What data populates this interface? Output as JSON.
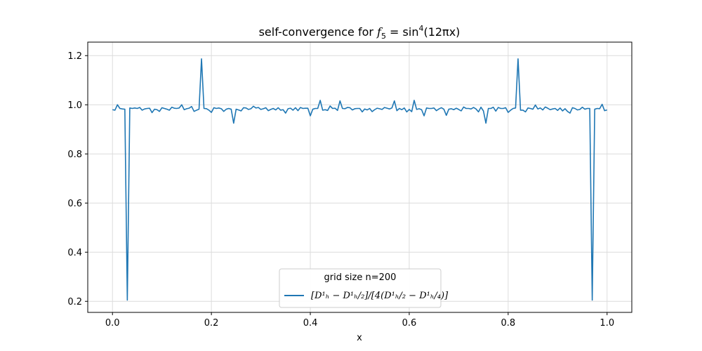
{
  "chart_data": {
    "type": "line",
    "title_prefix": "self-convergence for ",
    "title_math": "f",
    "title_sub": "5",
    "title_rest": " = sin",
    "title_sup": "4",
    "title_end": "(12πx)",
    "xlabel": "x",
    "ylabel": "",
    "xlim": [
      -0.05,
      1.05
    ],
    "ylim": [
      0.155,
      1.255
    ],
    "xticks": [
      0.0,
      0.2,
      0.4,
      0.6,
      0.8,
      1.0
    ],
    "xtick_labels": [
      "0.0",
      "0.2",
      "0.4",
      "0.6",
      "0.8",
      "1.0"
    ],
    "yticks": [
      0.2,
      0.4,
      0.6,
      0.8,
      1.0,
      1.2
    ],
    "ytick_labels": [
      "0.2",
      "0.4",
      "0.6",
      "0.8",
      "1.0",
      "1.2"
    ],
    "grid": true,
    "legend": {
      "placement": "lower center",
      "title": "grid size n=200",
      "entry": "[D¹ₕ − D¹ₕ/₂]/[4(D¹ₕ/₂ − D¹ₕ/₄)]"
    },
    "series": [
      {
        "color": "#1f77b4",
        "x": [
          0.0,
          0.005,
          0.01,
          0.015,
          0.02,
          0.025,
          0.03,
          0.035,
          0.04,
          0.045,
          0.05,
          0.055,
          0.06,
          0.065,
          0.07,
          0.075,
          0.08,
          0.085,
          0.09,
          0.095,
          0.1,
          0.105,
          0.11,
          0.115,
          0.12,
          0.125,
          0.13,
          0.135,
          0.14,
          0.145,
          0.15,
          0.155,
          0.16,
          0.165,
          0.17,
          0.175,
          0.18,
          0.185,
          0.19,
          0.195,
          0.2,
          0.205,
          0.21,
          0.215,
          0.22,
          0.225,
          0.23,
          0.235,
          0.24,
          0.245,
          0.25,
          0.255,
          0.26,
          0.265,
          0.27,
          0.275,
          0.28,
          0.285,
          0.29,
          0.295,
          0.3,
          0.305,
          0.31,
          0.315,
          0.32,
          0.325,
          0.33,
          0.335,
          0.34,
          0.345,
          0.35,
          0.355,
          0.36,
          0.365,
          0.37,
          0.375,
          0.38,
          0.385,
          0.39,
          0.395,
          0.4,
          0.405,
          0.41,
          0.415,
          0.42,
          0.425,
          0.43,
          0.435,
          0.44,
          0.445,
          0.45,
          0.455,
          0.46,
          0.465,
          0.47,
          0.475,
          0.48,
          0.485,
          0.49,
          0.495,
          0.5,
          0.505,
          0.51,
          0.515,
          0.52,
          0.525,
          0.53,
          0.535,
          0.54,
          0.545,
          0.55,
          0.555,
          0.56,
          0.565,
          0.57,
          0.575,
          0.58,
          0.585,
          0.59,
          0.595,
          0.6,
          0.605,
          0.61,
          0.615,
          0.62,
          0.625,
          0.63,
          0.635,
          0.64,
          0.645,
          0.65,
          0.655,
          0.66,
          0.665,
          0.67,
          0.675,
          0.68,
          0.685,
          0.69,
          0.695,
          0.7,
          0.705,
          0.71,
          0.715,
          0.72,
          0.725,
          0.73,
          0.735,
          0.74,
          0.745,
          0.75,
          0.755,
          0.76,
          0.765,
          0.77,
          0.775,
          0.78,
          0.785,
          0.79,
          0.795,
          0.8,
          0.805,
          0.81,
          0.815,
          0.82,
          0.825,
          0.83,
          0.835,
          0.84,
          0.845,
          0.85,
          0.855,
          0.86,
          0.865,
          0.87,
          0.875,
          0.88,
          0.885,
          0.89,
          0.895,
          0.9,
          0.905,
          0.91,
          0.915,
          0.92,
          0.925,
          0.93,
          0.935,
          0.94,
          0.945,
          0.95,
          0.955,
          0.96,
          0.965,
          0.97,
          0.975,
          0.98,
          0.985,
          0.99,
          0.995,
          1.0
        ],
        "y": [
          0.98,
          0.978,
          1.0,
          0.985,
          0.983,
          0.982,
          0.205,
          0.987,
          0.985,
          0.987,
          0.985,
          0.989,
          0.978,
          0.983,
          0.985,
          0.986,
          0.968,
          0.982,
          0.98,
          0.973,
          0.988,
          0.985,
          0.982,
          0.978,
          0.99,
          0.986,
          0.985,
          0.987,
          1.0,
          0.98,
          0.984,
          0.986,
          0.993,
          0.973,
          0.978,
          0.982,
          1.187,
          0.985,
          0.984,
          0.978,
          0.969,
          0.988,
          0.985,
          0.987,
          0.984,
          0.973,
          0.982,
          0.985,
          0.982,
          0.925,
          0.982,
          0.979,
          0.975,
          0.988,
          0.987,
          0.981,
          0.984,
          0.994,
          0.987,
          0.989,
          0.981,
          0.984,
          0.988,
          0.976,
          0.981,
          0.985,
          0.979,
          0.988,
          0.978,
          0.98,
          0.966,
          0.984,
          0.986,
          0.978,
          0.988,
          0.976,
          0.989,
          0.985,
          0.986,
          0.986,
          0.955,
          0.982,
          0.985,
          0.985,
          1.018,
          0.978,
          0.98,
          0.977,
          0.995,
          0.985,
          0.986,
          0.977,
          1.016,
          0.985,
          0.984,
          0.989,
          0.988,
          0.979,
          0.984,
          0.985,
          0.985,
          0.971,
          0.983,
          0.979,
          0.985,
          0.972,
          0.98,
          0.986,
          0.984,
          0.981,
          0.989,
          0.986,
          0.983,
          0.987,
          1.016,
          0.976,
          0.985,
          0.98,
          0.987,
          0.971,
          0.981,
          0.972,
          1.018,
          0.981,
          0.984,
          0.98,
          0.955,
          0.987,
          0.985,
          0.985,
          0.987,
          0.976,
          0.983,
          0.988,
          0.982,
          0.957,
          0.982,
          0.984,
          0.98,
          0.986,
          0.981,
          0.975,
          0.991,
          0.985,
          0.985,
          0.983,
          0.989,
          0.983,
          0.971,
          0.99,
          0.975,
          0.925,
          0.985,
          0.985,
          0.99,
          0.974,
          0.989,
          0.985,
          0.985,
          0.988,
          0.969,
          0.978,
          0.985,
          0.987,
          1.187,
          0.978,
          0.978,
          0.971,
          0.987,
          0.985,
          0.982,
          0.999,
          0.983,
          0.987,
          0.979,
          0.991,
          0.986,
          0.98,
          0.983,
          0.985,
          0.977,
          0.987,
          0.975,
          0.984,
          0.973,
          0.966,
          0.988,
          0.985,
          0.979,
          0.981,
          0.99,
          0.982,
          0.985,
          0.985,
          0.205,
          0.982,
          0.985,
          0.984,
          1.002,
          0.976,
          0.979
        ]
      }
    ]
  }
}
